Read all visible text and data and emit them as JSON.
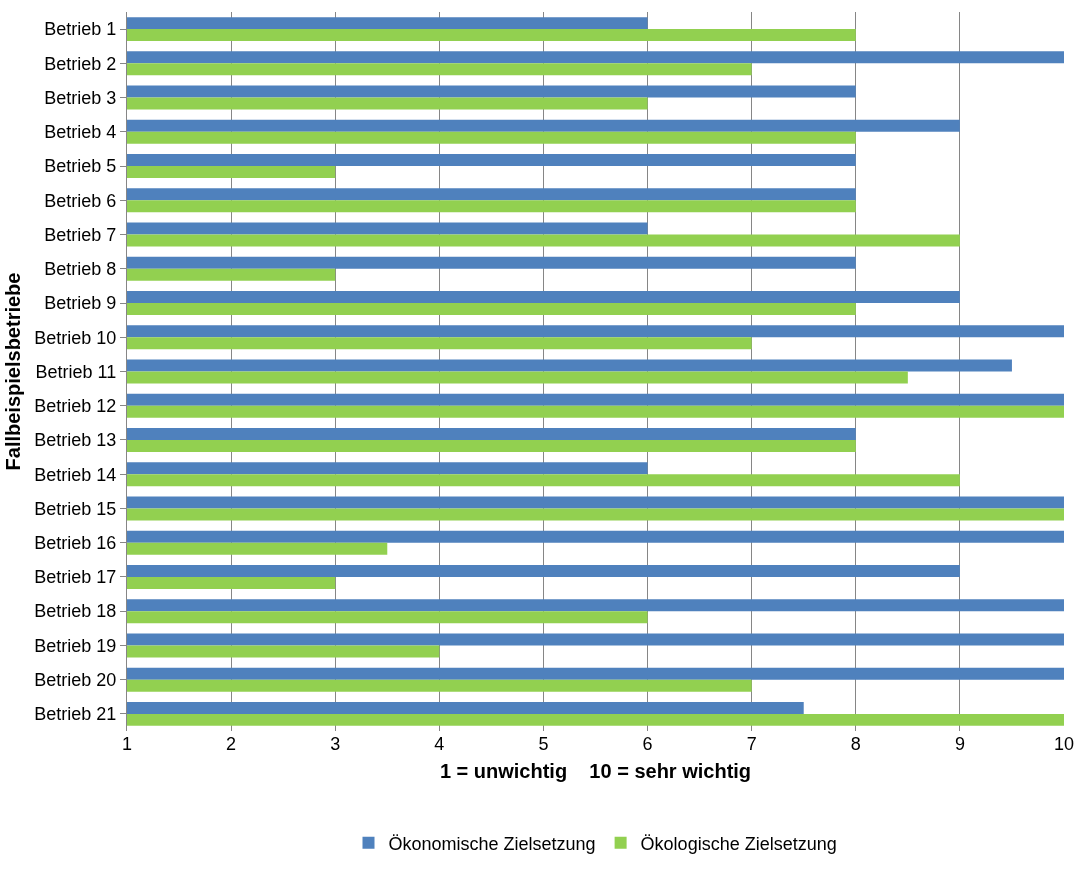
{
  "chart_data": {
    "type": "bar",
    "orientation": "horizontal",
    "xlabel": "1 = unwichtig    10 = sehr wichtig",
    "ylabel": "Fallbeispielsbetriebe",
    "categories": [
      "Betrieb 1",
      "Betrieb 2",
      "Betrieb 3",
      "Betrieb 4",
      "Betrieb 5",
      "Betrieb 6",
      "Betrieb 7",
      "Betrieb 8",
      "Betrieb 9",
      "Betrieb 10",
      "Betrieb 11",
      "Betrieb 12",
      "Betrieb 13",
      "Betrieb 14",
      "Betrieb 15",
      "Betrieb 16",
      "Betrieb 17",
      "Betrieb 18",
      "Betrieb 19",
      "Betrieb 20",
      "Betrieb 21"
    ],
    "series": [
      {
        "name": "Ökonomische Zielsetzung",
        "color": "#4f81bd",
        "values": [
          6,
          10,
          8,
          9,
          8,
          8,
          6,
          8,
          9,
          10,
          9.5,
          10,
          8,
          6,
          10,
          10,
          9,
          10,
          10,
          10,
          7.5
        ]
      },
      {
        "name": "Ökologische Zielsetzung",
        "color": "#92d050",
        "values": [
          8,
          7,
          6,
          8,
          3,
          8,
          9,
          3,
          8,
          7,
          8.5,
          10,
          8,
          9,
          10,
          3.5,
          3,
          6,
          4,
          7,
          10
        ]
      }
    ],
    "xlim": [
      1,
      10
    ],
    "xticks": [
      1,
      2,
      3,
      4,
      5,
      6,
      7,
      8,
      9,
      10
    ],
    "grid": "x",
    "legend": "bottom"
  }
}
